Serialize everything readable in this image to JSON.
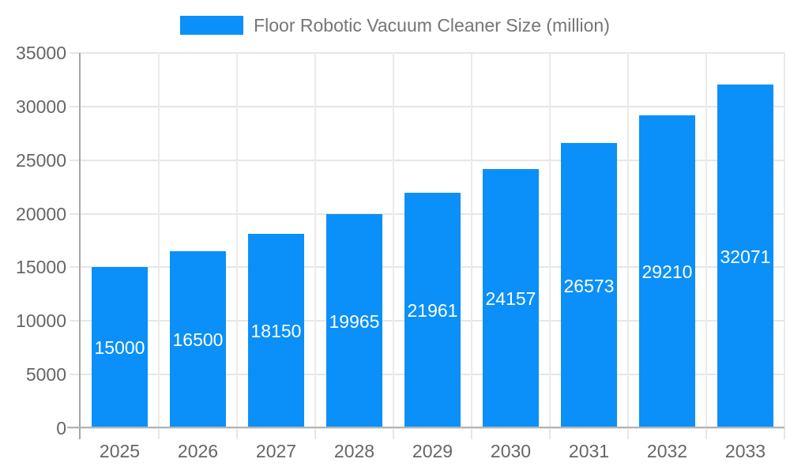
{
  "chart_data": {
    "type": "bar",
    "title": "Floor Robotic Vacuum Cleaner Size (million)",
    "categories": [
      "2025",
      "2026",
      "2027",
      "2028",
      "2029",
      "2030",
      "2031",
      "2032",
      "2033"
    ],
    "values": [
      15000,
      16500,
      18150,
      19965,
      21961,
      24157,
      26573,
      29210,
      32071
    ],
    "bar_labels": [
      "15000",
      "16500",
      "18150",
      "19965",
      "21961",
      "24157",
      "26573",
      "29210",
      "32071"
    ],
    "xlabel": "",
    "ylabel": "",
    "ylim": [
      0,
      35000
    ],
    "ytick_step": 5000,
    "yticks": [
      0,
      5000,
      10000,
      15000,
      20000,
      25000,
      30000,
      35000
    ],
    "ytick_labels": [
      "0",
      "5000",
      "10000",
      "15000",
      "20000",
      "25000",
      "30000",
      "35000"
    ],
    "grid": true,
    "legend_position": "top-center",
    "style": {
      "bar_color": "#0a90f8",
      "bar_value_label_color": "#ffffff",
      "legend_text_color": "#757575",
      "axis_text_color": "#666666",
      "gridline_color": "#e6e6e6",
      "vertical_gridline_color": "#ebebeb",
      "y_axis_line_color": "#a6a6a6",
      "x_axis_line_color": "#b3b3b3",
      "background_color": "#ffffff"
    }
  }
}
